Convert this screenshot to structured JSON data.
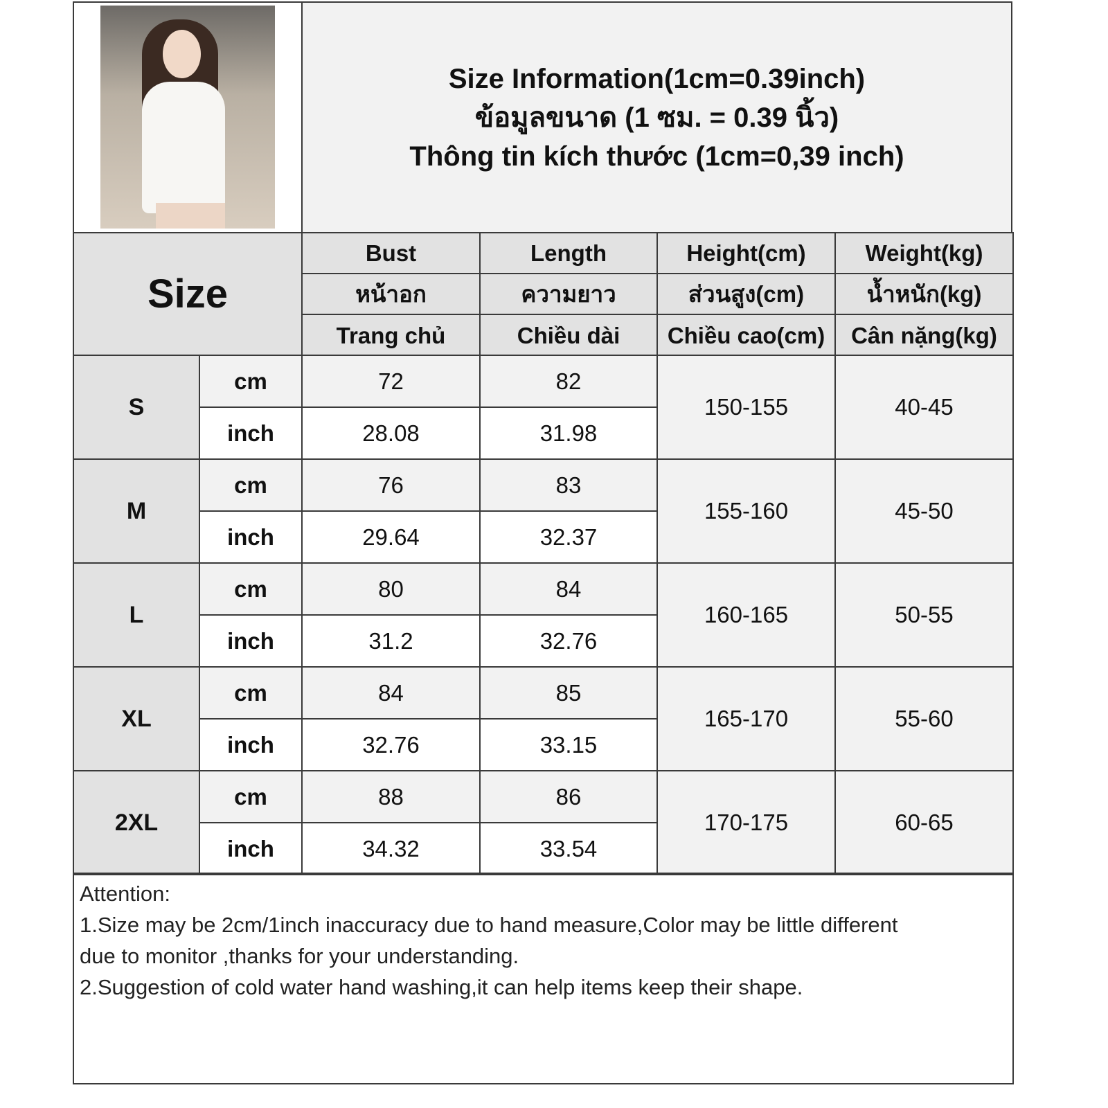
{
  "header": {
    "title_lines": [
      "Size Information(1cm=0.39inch)",
      "ข้อมูลขนาด (1 ซม. = 0.39 นิ้ว)",
      "Thông tin kích thước (1cm=0,39 inch)"
    ],
    "size_label": "Size"
  },
  "columns": [
    {
      "en": "Bust",
      "th": "หน้าอก",
      "vi": "Trang chủ"
    },
    {
      "en": "Length",
      "th": "ความยาว",
      "vi": "Chiều dài"
    },
    {
      "en": "Height(cm)",
      "th": "ส่วนสูง(cm)",
      "vi": "Chiều cao(cm)"
    },
    {
      "en": "Weight(kg)",
      "th": "น้ำหนัก(kg)",
      "vi": "Cân nặng(kg)"
    }
  ],
  "units": {
    "cm": "cm",
    "inch": "inch"
  },
  "rows": [
    {
      "size": "S",
      "bust_cm": "72",
      "bust_in": "28.08",
      "length_cm": "82",
      "length_in": "31.98",
      "height": "150-155",
      "weight": "40-45"
    },
    {
      "size": "M",
      "bust_cm": "76",
      "bust_in": "29.64",
      "length_cm": "83",
      "length_in": "32.37",
      "height": "155-160",
      "weight": "45-50"
    },
    {
      "size": "L",
      "bust_cm": "80",
      "bust_in": "31.2",
      "length_cm": "84",
      "length_in": "32.76",
      "height": "160-165",
      "weight": "50-55"
    },
    {
      "size": "XL",
      "bust_cm": "84",
      "bust_in": "32.76",
      "length_cm": "85",
      "length_in": "33.15",
      "height": "165-170",
      "weight": "55-60"
    },
    {
      "size": "2XL",
      "bust_cm": "88",
      "bust_in": "34.32",
      "length_cm": "86",
      "length_in": "33.54",
      "height": "170-175",
      "weight": "60-65"
    }
  ],
  "notes": {
    "heading": "Attention:",
    "line1": "1.Size may be 2cm/1inch inaccuracy due to hand measure,Color may be little different",
    "line2": "due to monitor ,thanks for your understanding.",
    "line3": "2.Suggestion of cold water hand washing,it can help items keep their shape."
  }
}
